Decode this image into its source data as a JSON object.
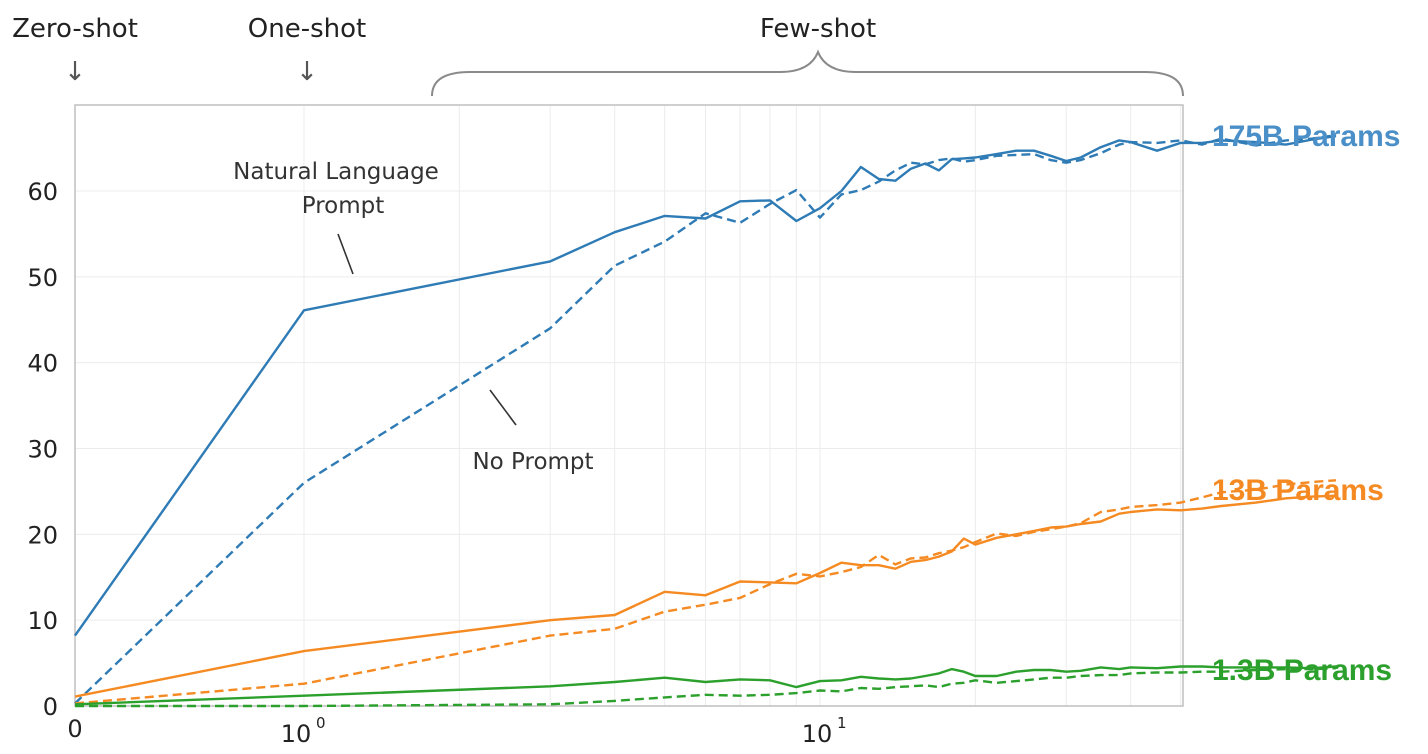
{
  "header": {
    "zero_shot": "Zero-shot",
    "one_shot": "One-shot",
    "few_shot": "Few-shot",
    "arrow_glyph": "↓"
  },
  "annotations": {
    "nl_prompt_line1": "Natural Language",
    "nl_prompt_line2": "Prompt",
    "no_prompt": "No Prompt"
  },
  "x_ticks": [
    {
      "label": "0",
      "exp": ""
    },
    {
      "label": "10",
      "exp": "0"
    },
    {
      "label": "10",
      "exp": "1"
    }
  ],
  "colors": {
    "175B Params": "#2e7bb5",
    "13B Params": "#f58a22",
    "1.3B Params": "#2ca02c",
    "model_label_175B": "#4a8fc7"
  },
  "chart_data": {
    "type": "line",
    "xscale": "symlog",
    "ylim": [
      0,
      70
    ],
    "xlim": [
      0,
      100
    ],
    "y_ticks": [
      0,
      10,
      20,
      30,
      40,
      50,
      60
    ],
    "x_ticks": [
      0,
      1,
      10
    ],
    "grid": true,
    "series": [
      {
        "name": "175B Params",
        "style": "solid",
        "x": [
          0,
          1,
          3,
          4,
          5,
          6,
          7,
          8,
          9,
          10,
          11,
          12,
          13,
          14,
          15,
          16,
          17,
          18,
          19,
          20,
          22,
          24,
          26,
          28,
          30,
          32,
          35,
          38,
          40,
          45,
          50,
          55,
          60,
          70,
          80,
          90,
          100
        ],
        "y": [
          8.2,
          46.1,
          51.8,
          55.2,
          57.1,
          56.8,
          58.8,
          58.9,
          56.5,
          58,
          60,
          62.8,
          61.4,
          61.2,
          62.6,
          63.2,
          62.4,
          63.7,
          63.8,
          63.9,
          64.3,
          64.7,
          64.7,
          64.1,
          63.5,
          63.9,
          65.1,
          65.9,
          65.7,
          64.7,
          65.6,
          65.6,
          65.9,
          65.7,
          65.4,
          66,
          66.4
        ]
      },
      {
        "name": "175B Params",
        "style": "dashed",
        "x": [
          0,
          1,
          3,
          4,
          5,
          6,
          7,
          8,
          9,
          10,
          11,
          12,
          13,
          14,
          15,
          16,
          17,
          18,
          19,
          20,
          22,
          24,
          26,
          28,
          30,
          32,
          35,
          38,
          40,
          45,
          50,
          55,
          60,
          70,
          80,
          90,
          100
        ],
        "y": [
          0.3,
          26,
          44,
          51.3,
          54.1,
          57.4,
          56.3,
          58.5,
          60.1,
          56.9,
          59.6,
          60.1,
          61.1,
          62.4,
          63.3,
          63.1,
          63.6,
          63.8,
          63.4,
          63.6,
          64.1,
          64.2,
          64.3,
          63.6,
          63.3,
          63.6,
          64.4,
          65.4,
          65.7,
          65.6,
          65.9,
          65.4,
          66.1,
          65.3,
          65.9,
          66.1,
          66.5
        ]
      },
      {
        "name": "13B Params",
        "style": "solid",
        "x": [
          0,
          1,
          3,
          4,
          5,
          6,
          7,
          8,
          9,
          10,
          11,
          12,
          13,
          14,
          15,
          16,
          17,
          18,
          19,
          20,
          22,
          24,
          26,
          28,
          30,
          32,
          35,
          38,
          40,
          45,
          50,
          55,
          60,
          70,
          80,
          90,
          100
        ],
        "y": [
          1.1,
          6.4,
          10,
          10.6,
          13.3,
          12.9,
          14.5,
          14.4,
          14.3,
          15.5,
          16.7,
          16.4,
          16.4,
          16,
          16.8,
          17,
          17.4,
          18,
          19.5,
          18.8,
          19.6,
          20,
          20.4,
          20.8,
          20.9,
          21.2,
          21.5,
          22.4,
          22.6,
          22.9,
          22.8,
          23,
          23.3,
          23.7,
          24.2,
          24.4,
          24.5
        ]
      },
      {
        "name": "13B Params",
        "style": "dashed",
        "x": [
          0,
          1,
          3,
          4,
          5,
          6,
          7,
          8,
          9,
          10,
          11,
          12,
          13,
          14,
          15,
          16,
          17,
          18,
          19,
          20,
          22,
          24,
          26,
          28,
          30,
          32,
          35,
          38,
          40,
          45,
          50,
          55,
          60,
          70,
          80,
          90,
          100
        ],
        "y": [
          0.3,
          2.6,
          8.2,
          9,
          11,
          11.8,
          12.6,
          14.2,
          15.4,
          15.1,
          15.6,
          16.2,
          17.6,
          16.5,
          17.2,
          17.3,
          17.8,
          18.1,
          18.5,
          19.1,
          20.1,
          19.8,
          20.3,
          20.6,
          20.9,
          21.3,
          22.6,
          22.9,
          23.2,
          23.4,
          23.7,
          24.3,
          24.9,
          25.2,
          25.8,
          26.1,
          26.3
        ]
      },
      {
        "name": "1.3B Params",
        "style": "solid",
        "x": [
          0,
          1,
          3,
          4,
          5,
          6,
          7,
          8,
          9,
          10,
          11,
          12,
          13,
          14,
          15,
          16,
          17,
          18,
          19,
          20,
          22,
          24,
          26,
          28,
          30,
          32,
          35,
          38,
          40,
          45,
          50,
          55,
          60,
          70,
          80,
          90,
          100
        ],
        "y": [
          0.2,
          1.2,
          2.3,
          2.8,
          3.3,
          2.8,
          3.1,
          3,
          2.2,
          2.9,
          3,
          3.4,
          3.2,
          3.1,
          3.2,
          3.5,
          3.8,
          4.3,
          4,
          3.5,
          3.5,
          4,
          4.2,
          4.2,
          4,
          4.1,
          4.5,
          4.3,
          4.5,
          4.4,
          4.6,
          4.6,
          4.5,
          4.5,
          4.5,
          4.4,
          4.6
        ]
      },
      {
        "name": "1.3B Params",
        "style": "dashed",
        "x": [
          0,
          1,
          3,
          4,
          5,
          6,
          7,
          8,
          9,
          10,
          11,
          12,
          13,
          14,
          15,
          16,
          17,
          18,
          19,
          20,
          22,
          24,
          26,
          28,
          30,
          32,
          35,
          38,
          40,
          45,
          50,
          55,
          60,
          70,
          80,
          90,
          100
        ],
        "y": [
          0,
          0,
          0.2,
          0.6,
          1,
          1.3,
          1.2,
          1.3,
          1.5,
          1.8,
          1.7,
          2.1,
          2,
          2.2,
          2.3,
          2.4,
          2.2,
          2.6,
          2.7,
          3,
          2.7,
          2.9,
          3.1,
          3.3,
          3.3,
          3.5,
          3.6,
          3.6,
          3.8,
          3.9,
          3.9,
          4,
          4,
          4.2,
          4.3,
          4.3,
          4.4
        ]
      }
    ],
    "model_labels": [
      "175B Params",
      "13B Params",
      "1.3B Params"
    ]
  }
}
